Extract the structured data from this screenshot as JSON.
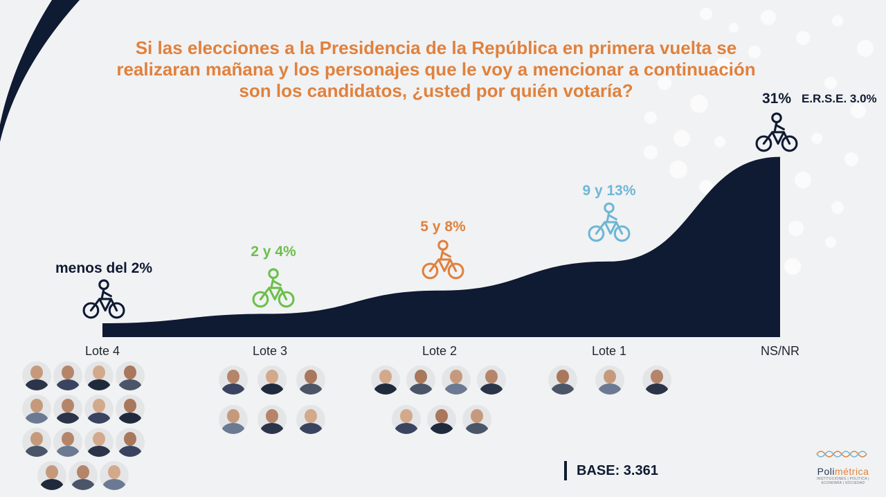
{
  "title": "Si las elecciones a la Presidencia de la República en primera vuelta se realizaran mañana y los personajes que le voy a mencionar a continuación son los candidatos, ¿usted por quién votaría?",
  "colors": {
    "navy": "#0f1a33",
    "orange": "#e0813d",
    "green": "#6cbf4c",
    "blue": "#6fb6d6",
    "text_dark": "#1f2530"
  },
  "chart_data": {
    "type": "area",
    "categories": [
      "Lote 4",
      "Lote 3",
      "Lote 2",
      "Lote 1",
      "NS/NR"
    ],
    "labels": [
      "menos del 2%",
      "2 y 4%",
      "5 y 8%",
      "9 y 13%",
      "31%"
    ],
    "values": [
      2,
      4,
      8,
      13,
      31
    ],
    "label_colors": [
      "#0f1a33",
      "#6cbf4c",
      "#e0813d",
      "#6fb6d6",
      "#0f1a33"
    ],
    "annotation": "E.R.S.E. 3.0%"
  },
  "photo_groups": [
    {
      "lote": "Lote 4",
      "count": 15,
      "icon": "candidate-photo"
    },
    {
      "lote": "Lote 3",
      "count": 6,
      "icon": "candidate-photo"
    },
    {
      "lote": "Lote 2",
      "count": 7,
      "icon": "candidate-photo"
    },
    {
      "lote": "Lote 1",
      "count": 3,
      "icon": "candidate-photo"
    }
  ],
  "base": "BASE: 3.361",
  "logo": {
    "name_a": "Poli",
    "name_b": "métrica",
    "tagline": "INSTITUCIONES | POLÍTICA | ECONOMÍA | SOCIEDAD"
  }
}
